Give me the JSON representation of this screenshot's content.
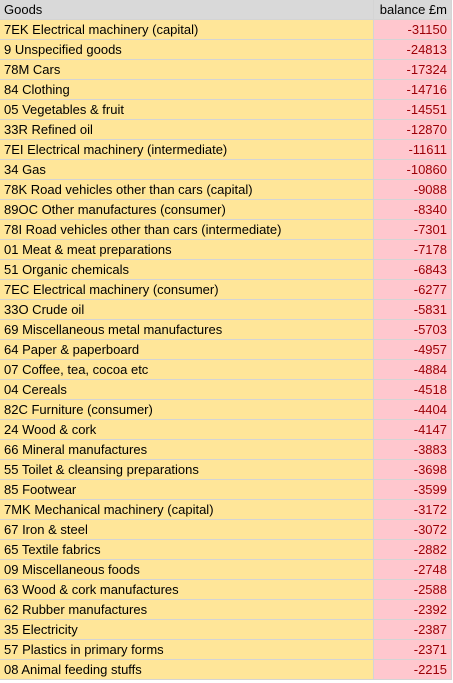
{
  "table": {
    "headers": [
      "Goods",
      "balance £m"
    ],
    "rows": [
      {
        "goods": "7EK Electrical machinery (capital)",
        "balance": "-31150"
      },
      {
        "goods": "9 Unspecified goods",
        "balance": "-24813"
      },
      {
        "goods": "78M Cars",
        "balance": "-17324"
      },
      {
        "goods": "84 Clothing",
        "balance": "-14716"
      },
      {
        "goods": "05 Vegetables & fruit",
        "balance": "-14551"
      },
      {
        "goods": "33R Refined oil",
        "balance": "-12870"
      },
      {
        "goods": "7EI Electrical machinery (intermediate)",
        "balance": "-11611"
      },
      {
        "goods": "34 Gas",
        "balance": "-10860"
      },
      {
        "goods": "78K Road vehicles other than cars (capital)",
        "balance": "-9088"
      },
      {
        "goods": "89OC Other manufactures (consumer)",
        "balance": "-8340"
      },
      {
        "goods": "78I Road vehicles other than cars (intermediate)",
        "balance": "-7301"
      },
      {
        "goods": "01 Meat & meat preparations",
        "balance": "-7178"
      },
      {
        "goods": "51 Organic chemicals",
        "balance": "-6843"
      },
      {
        "goods": "7EC Electrical machinery (consumer)",
        "balance": "-6277"
      },
      {
        "goods": "33O Crude oil",
        "balance": "-5831"
      },
      {
        "goods": "69 Miscellaneous metal manufactures",
        "balance": "-5703"
      },
      {
        "goods": "64 Paper & paperboard",
        "balance": "-4957"
      },
      {
        "goods": "07 Coffee, tea, cocoa etc",
        "balance": "-4884"
      },
      {
        "goods": "04 Cereals",
        "balance": "-4518"
      },
      {
        "goods": "82C Furniture (consumer)",
        "balance": "-4404"
      },
      {
        "goods": "24 Wood & cork",
        "balance": "-4147"
      },
      {
        "goods": "66 Mineral manufactures",
        "balance": "-3883"
      },
      {
        "goods": "55 Toilet & cleansing preparations",
        "balance": "-3698"
      },
      {
        "goods": "85 Footwear",
        "balance": "-3599"
      },
      {
        "goods": "7MK Mechanical machinery (capital)",
        "balance": "-3172"
      },
      {
        "goods": "67 Iron & steel",
        "balance": "-3072"
      },
      {
        "goods": "65 Textile fabrics",
        "balance": "-2882"
      },
      {
        "goods": "09 Miscellaneous foods",
        "balance": "-2748"
      },
      {
        "goods": "63 Wood & cork manufactures",
        "balance": "-2588"
      },
      {
        "goods": "62 Rubber manufactures",
        "balance": "-2392"
      },
      {
        "goods": "35 Electricity",
        "balance": "-2387"
      },
      {
        "goods": "57 Plastics in primary forms",
        "balance": "-2371"
      },
      {
        "goods": "08 Animal feeding stuffs",
        "balance": "-2215"
      }
    ]
  },
  "colors": {
    "header_fill": "#d9d9d9",
    "goods_fill": "#ffe699",
    "balance_fill": "#ffc7ce",
    "balance_text": "#9c0006"
  }
}
